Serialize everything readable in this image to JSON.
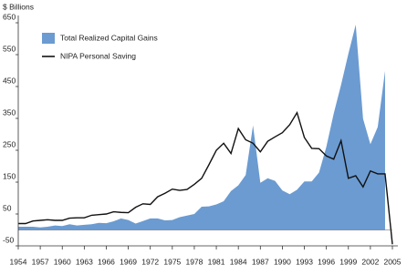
{
  "chart_data": {
    "type": "area",
    "ylabel": "$ Billions",
    "x": [
      1954,
      1955,
      1956,
      1957,
      1958,
      1959,
      1960,
      1961,
      1962,
      1963,
      1964,
      1965,
      1966,
      1967,
      1968,
      1969,
      1970,
      1971,
      1972,
      1973,
      1974,
      1975,
      1976,
      1977,
      1978,
      1979,
      1980,
      1981,
      1982,
      1983,
      1984,
      1985,
      1986,
      1987,
      1988,
      1989,
      1990,
      1991,
      1992,
      1993,
      1994,
      1995,
      1996,
      1997,
      1998,
      1999,
      2000,
      2001,
      2002,
      2003,
      2004,
      2005
    ],
    "series": [
      {
        "name": "Total Realized Capital Gains",
        "type": "area",
        "color": "#6b9bd1",
        "values": [
          10,
          10,
          10,
          8,
          10,
          14,
          12,
          18,
          14,
          16,
          18,
          22,
          21,
          27,
          36,
          31,
          20,
          28,
          36,
          36,
          30,
          31,
          40,
          45,
          50,
          73,
          74,
          80,
          90,
          122,
          140,
          172,
          328,
          148,
          162,
          154,
          124,
          112,
          126,
          152,
          152,
          180,
          261,
          365,
          455,
          553,
          644,
          349,
          269,
          323,
          499,
          null
        ]
      },
      {
        "name": "NIPA Personal Saving",
        "type": "line",
        "color": "#111111",
        "values": [
          20,
          20,
          28,
          30,
          32,
          30,
          30,
          37,
          38,
          38,
          46,
          48,
          50,
          57,
          55,
          54,
          71,
          82,
          80,
          104,
          115,
          128,
          124,
          127,
          143,
          162,
          205,
          250,
          272,
          240,
          318,
          283,
          272,
          245,
          278,
          292,
          305,
          330,
          368,
          290,
          256,
          255,
          232,
          222,
          280,
          162,
          170,
          135,
          185,
          176,
          176,
          -45
        ]
      }
    ],
    "xlim": [
      1954,
      2005
    ],
    "xticks": [
      1954,
      1957,
      1960,
      1963,
      1966,
      1969,
      1972,
      1975,
      1978,
      1981,
      1984,
      1987,
      1990,
      1993,
      1996,
      1999,
      2002,
      2005
    ],
    "ylim": [
      -50,
      650
    ],
    "yticks": [
      -50,
      50,
      150,
      250,
      350,
      450,
      550,
      650
    ],
    "legend": "top-left"
  }
}
